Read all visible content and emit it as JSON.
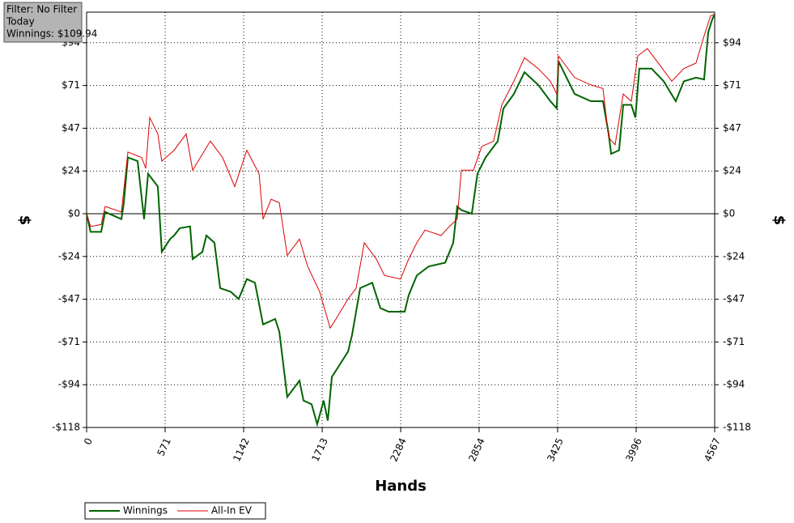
{
  "chart_data": {
    "type": "line",
    "info": [
      "Filter: No Filter",
      "Today",
      "Winnings: $109.94"
    ],
    "x_label": "Hands",
    "y_label": "$",
    "xlim": [
      0,
      4567
    ],
    "xticks": [
      0,
      571,
      1142,
      1713,
      2284,
      2854,
      3425,
      3996,
      4567
    ],
    "ylim": [
      -117.8,
      111.1
    ],
    "yticks": [
      {
        "value": -117.8,
        "label": "-$118"
      },
      {
        "value": -94.24,
        "label": "-$94"
      },
      {
        "value": -70.68,
        "label": "-$71"
      },
      {
        "value": -47.12,
        "label": "-$47"
      },
      {
        "value": -23.56,
        "label": "-$24"
      },
      {
        "value": 0,
        "label": "$0"
      },
      {
        "value": 23.56,
        "label": "$24"
      },
      {
        "value": 47.12,
        "label": "$47"
      },
      {
        "value": 70.68,
        "label": "$71"
      },
      {
        "value": 94.24,
        "label": "$94"
      }
    ],
    "grid": true,
    "series": [
      {
        "name": "Winnings",
        "color": "#006400",
        "x": [
          0,
          29,
          106,
          135,
          253,
          271,
          300,
          371,
          418,
          447,
          518,
          547,
          606,
          636,
          677,
          753,
          771,
          842,
          871,
          930,
          971,
          1048,
          1106,
          1165,
          1224,
          1283,
          1371,
          1401,
          1459,
          1548,
          1577,
          1636,
          1677,
          1724,
          1754,
          1783,
          1842,
          1901,
          1930,
          1989,
          2077,
          2136,
          2195,
          2313,
          2342,
          2401,
          2489,
          2607,
          2666,
          2695,
          2725,
          2801,
          2842,
          2901,
          2990,
          3031,
          3107,
          3184,
          3284,
          3372,
          3419,
          3431,
          3549,
          3667,
          3755,
          3796,
          3814,
          3872,
          3902,
          3961,
          3990,
          4019,
          4108,
          4196,
          4284,
          4343,
          4431,
          4490,
          4520,
          4549,
          4567
        ],
        "values": [
          0,
          -10,
          -10,
          1,
          -3,
          6,
          31,
          29,
          -3,
          22,
          15,
          -21,
          -14,
          -12,
          -8,
          -7,
          -25,
          -21,
          -12,
          -16,
          -41,
          -43,
          -47,
          -36,
          -38,
          -61,
          -58,
          -65,
          -101,
          -92,
          -103,
          -105,
          -116,
          -103,
          -114,
          -90,
          -83,
          -76,
          -67,
          -41,
          -38,
          -52,
          -54,
          -54,
          -45,
          -34,
          -29,
          -27,
          -16,
          4,
          2,
          0,
          22,
          31,
          40,
          58,
          66,
          78,
          71,
          62,
          58,
          84,
          66,
          62,
          62,
          44,
          33,
          35,
          60,
          60,
          53,
          80,
          80,
          73,
          62,
          73,
          75,
          74,
          100,
          107,
          109.94
        ]
      },
      {
        "name": "All-In EV",
        "color": "#dd0000",
        "x": [
          0,
          29,
          106,
          135,
          253,
          300,
          400,
          430,
          459,
          518,
          547,
          636,
          724,
          771,
          900,
          989,
          1077,
          1165,
          1254,
          1283,
          1342,
          1401,
          1459,
          1548,
          1607,
          1695,
          1771,
          1813,
          1901,
          1960,
          2019,
          2107,
          2166,
          2283,
          2342,
          2401,
          2460,
          2578,
          2637,
          2695,
          2725,
          2813,
          2872,
          2960,
          3019,
          3107,
          3184,
          3284,
          3372,
          3419,
          3431,
          3549,
          3667,
          3755,
          3796,
          3843,
          3902,
          3961,
          4008,
          4078,
          4167,
          4255,
          4343,
          4431,
          4490,
          4537,
          4567
        ],
        "values": [
          0,
          -7,
          -6,
          4,
          1,
          34,
          31,
          25,
          53,
          44,
          29,
          35,
          44,
          24,
          40,
          31,
          15,
          35,
          22,
          -3,
          8,
          6,
          -23,
          -14,
          -29,
          -43,
          -63,
          -58,
          -47,
          -41,
          -16,
          -25,
          -34,
          -36,
          -25,
          -16,
          -9,
          -12,
          -7,
          -3,
          24,
          24,
          37,
          40,
          60,
          73,
          86,
          80,
          73,
          66,
          87,
          75,
          71,
          69,
          42,
          38,
          66,
          62,
          87,
          91,
          82,
          73,
          80,
          83,
          98,
          109,
          110
        ]
      }
    ]
  }
}
